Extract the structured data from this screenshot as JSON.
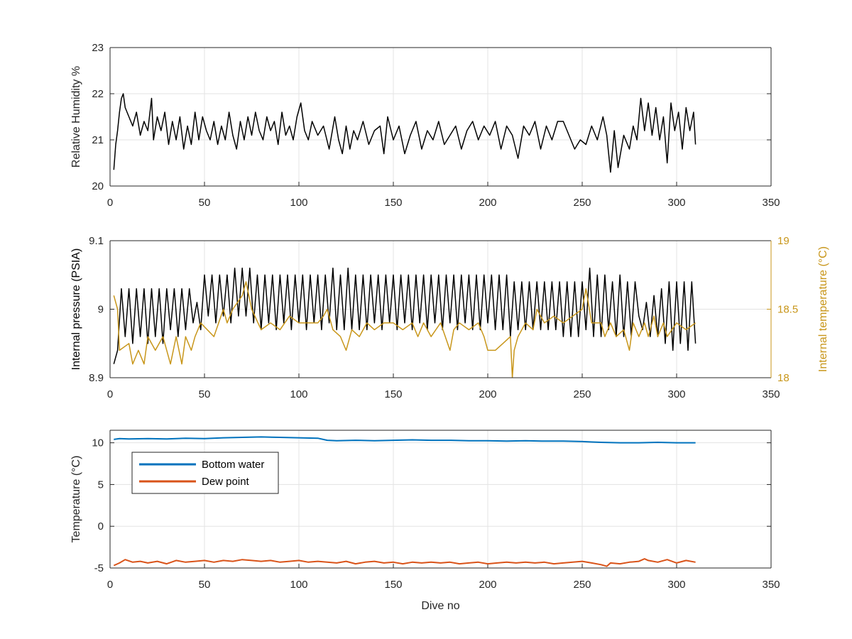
{
  "chart_data": [
    {
      "type": "line",
      "id": "humidity",
      "ylabel": "Relative Humidity %",
      "xlabel": "",
      "xlim": [
        0,
        350
      ],
      "ylim": [
        20,
        23
      ],
      "xticks": [
        "0",
        "50",
        "100",
        "150",
        "200",
        "250",
        "300",
        "350"
      ],
      "yticks": [
        "20",
        "21",
        "22",
        "23"
      ],
      "grid": true,
      "series": [
        {
          "color": "#000000",
          "x": [
            2,
            3,
            4,
            5,
            6,
            7,
            8,
            10,
            12,
            14,
            16,
            18,
            20,
            22,
            23,
            25,
            27,
            29,
            31,
            33,
            35,
            37,
            39,
            41,
            43,
            45,
            47,
            49,
            51,
            53,
            55,
            57,
            59,
            61,
            63,
            65,
            67,
            69,
            71,
            73,
            75,
            77,
            79,
            81,
            83,
            85,
            87,
            89,
            91,
            93,
            95,
            97,
            99,
            101,
            103,
            105,
            107,
            110,
            113,
            116,
            119,
            121,
            123,
            125,
            127,
            129,
            131,
            134,
            137,
            140,
            143,
            145,
            147,
            150,
            153,
            156,
            159,
            162,
            165,
            168,
            171,
            174,
            177,
            180,
            183,
            186,
            189,
            192,
            195,
            198,
            201,
            204,
            207,
            210,
            213,
            216,
            219,
            222,
            225,
            228,
            231,
            234,
            237,
            240,
            243,
            246,
            249,
            252,
            255,
            258,
            261,
            263,
            265,
            267,
            269,
            272,
            275,
            277,
            279,
            281,
            283,
            285,
            287,
            289,
            291,
            293,
            295,
            297,
            299,
            301,
            303,
            305,
            307,
            309,
            310
          ],
          "y": [
            20.35,
            20.9,
            21.2,
            21.6,
            21.9,
            22.0,
            21.7,
            21.5,
            21.3,
            21.6,
            21.1,
            21.4,
            21.2,
            21.9,
            21.0,
            21.5,
            21.2,
            21.6,
            20.9,
            21.4,
            21.0,
            21.5,
            20.8,
            21.3,
            20.9,
            21.6,
            21.0,
            21.5,
            21.2,
            21.0,
            21.4,
            20.9,
            21.3,
            21.0,
            21.6,
            21.1,
            20.8,
            21.4,
            21.0,
            21.5,
            21.1,
            21.6,
            21.2,
            21.0,
            21.5,
            21.2,
            21.4,
            20.9,
            21.6,
            21.1,
            21.3,
            21.0,
            21.5,
            21.8,
            21.2,
            21.0,
            21.4,
            21.1,
            21.3,
            20.8,
            21.5,
            21.0,
            20.7,
            21.3,
            20.8,
            21.2,
            21.0,
            21.4,
            20.9,
            21.2,
            21.3,
            20.7,
            21.5,
            21.0,
            21.3,
            20.7,
            21.1,
            21.4,
            20.8,
            21.2,
            21.0,
            21.4,
            20.9,
            21.1,
            21.3,
            20.8,
            21.2,
            21.4,
            21.0,
            21.3,
            21.1,
            21.4,
            20.8,
            21.3,
            21.1,
            20.6,
            21.3,
            21.1,
            21.4,
            20.8,
            21.3,
            21.0,
            21.4,
            21.4,
            21.1,
            20.8,
            21.0,
            20.9,
            21.3,
            21.0,
            21.5,
            21.1,
            20.3,
            21.2,
            20.4,
            21.1,
            20.8,
            21.3,
            21.0,
            21.9,
            21.2,
            21.8,
            21.1,
            21.7,
            21.0,
            21.5,
            20.5,
            21.8,
            21.2,
            21.6,
            20.8,
            21.7,
            21.2,
            21.6,
            20.9
          ]
        }
      ]
    },
    {
      "type": "line",
      "id": "pressure",
      "ylabel": "Internal pressure (PSIA)",
      "y2label": "Internal temperature (°C)",
      "xlabel": "",
      "xlim": [
        0,
        350
      ],
      "ylim": [
        8.9,
        9.1
      ],
      "y2lim": [
        18,
        19
      ],
      "xticks": [
        "0",
        "50",
        "100",
        "150",
        "200",
        "250",
        "300",
        "350"
      ],
      "yticks": [
        "8.9",
        "9",
        "9.1"
      ],
      "y2ticks": [
        "18",
        "18.5",
        "19"
      ],
      "grid": true,
      "series": [
        {
          "axis": "left",
          "color": "#000000",
          "x": [
            2,
            4,
            6,
            8,
            10,
            12,
            14,
            16,
            18,
            20,
            22,
            24,
            26,
            28,
            30,
            32,
            34,
            36,
            38,
            40,
            42,
            44,
            46,
            48,
            50,
            52,
            54,
            56,
            58,
            60,
            62,
            64,
            66,
            68,
            70,
            72,
            74,
            76,
            78,
            80,
            82,
            84,
            86,
            88,
            90,
            92,
            94,
            96,
            98,
            100,
            102,
            104,
            106,
            108,
            110,
            112,
            114,
            116,
            118,
            120,
            122,
            124,
            126,
            128,
            130,
            132,
            134,
            136,
            138,
            140,
            142,
            144,
            146,
            148,
            150,
            152,
            154,
            156,
            158,
            160,
            162,
            164,
            166,
            168,
            170,
            172,
            174,
            176,
            178,
            180,
            182,
            184,
            186,
            188,
            190,
            192,
            194,
            196,
            198,
            200,
            202,
            204,
            206,
            208,
            210,
            212,
            214,
            216,
            218,
            220,
            222,
            224,
            226,
            228,
            230,
            232,
            234,
            236,
            238,
            240,
            242,
            244,
            246,
            248,
            250,
            252,
            254,
            256,
            258,
            260,
            262,
            264,
            266,
            268,
            270,
            272,
            274,
            276,
            278,
            280,
            282,
            284,
            286,
            288,
            290,
            292,
            294,
            296,
            298,
            300,
            302,
            304,
            306,
            308,
            310
          ],
          "y": [
            8.92,
            8.94,
            9.03,
            8.96,
            9.03,
            8.95,
            9.03,
            8.96,
            9.03,
            8.95,
            9.03,
            8.96,
            9.03,
            8.95,
            9.03,
            8.97,
            9.03,
            8.96,
            9.03,
            8.97,
            9.03,
            8.98,
            9.01,
            8.97,
            9.05,
            8.99,
            9.05,
            8.98,
            9.05,
            8.99,
            9.05,
            8.98,
            9.06,
            8.99,
            9.06,
            8.99,
            9.06,
            8.98,
            9.05,
            8.97,
            9.05,
            8.98,
            9.05,
            8.97,
            9.05,
            8.98,
            9.05,
            8.97,
            9.05,
            8.98,
            9.05,
            8.97,
            9.05,
            8.98,
            9.05,
            8.97,
            9.05,
            8.98,
            9.06,
            8.97,
            9.05,
            8.97,
            9.06,
            8.97,
            9.05,
            8.97,
            9.05,
            8.97,
            9.05,
            8.98,
            9.05,
            8.97,
            9.05,
            8.98,
            9.05,
            8.97,
            9.05,
            8.98,
            9.05,
            8.97,
            9.05,
            8.98,
            9.05,
            8.97,
            9.05,
            8.98,
            9.05,
            8.97,
            9.05,
            8.98,
            9.05,
            8.97,
            9.05,
            8.98,
            9.05,
            8.97,
            9.05,
            8.97,
            9.05,
            8.98,
            9.05,
            8.97,
            9.05,
            8.97,
            9.05,
            8.96,
            9.04,
            8.97,
            9.04,
            8.97,
            9.04,
            8.97,
            9.04,
            8.97,
            9.04,
            8.97,
            9.04,
            8.97,
            9.04,
            8.96,
            9.04,
            8.96,
            9.04,
            8.96,
            9.04,
            8.97,
            9.06,
            8.96,
            9.05,
            8.96,
            9.05,
            8.97,
            9.04,
            8.96,
            9.05,
            8.96,
            9.04,
            8.96,
            9.04,
            8.99,
            8.97,
            9.01,
            8.96,
            9.02,
            8.96,
            9.03,
            8.95,
            9.04,
            8.94,
            9.04,
            8.95,
            9.04,
            8.94,
            9.04,
            8.95
          ]
        },
        {
          "axis": "right",
          "color": "#c8961a",
          "x": [
            2,
            4,
            5,
            10,
            12,
            15,
            18,
            20,
            24,
            28,
            30,
            32,
            35,
            38,
            40,
            43,
            45,
            48,
            55,
            60,
            62,
            65,
            70,
            72,
            75,
            80,
            85,
            90,
            95,
            100,
            105,
            110,
            113,
            115,
            118,
            122,
            125,
            128,
            132,
            136,
            140,
            145,
            150,
            155,
            160,
            163,
            166,
            170,
            175,
            180,
            182,
            185,
            190,
            195,
            198,
            200,
            204,
            208,
            212,
            213,
            214,
            216,
            220,
            224,
            226,
            230,
            235,
            240,
            245,
            250,
            252,
            255,
            260,
            262,
            265,
            268,
            272,
            275,
            277,
            280,
            283,
            285,
            288,
            290,
            293,
            295,
            300,
            305,
            310
          ],
          "y": [
            18.6,
            18.5,
            18.2,
            18.25,
            18.1,
            18.2,
            18.1,
            18.3,
            18.2,
            18.3,
            18.2,
            18.1,
            18.3,
            18.1,
            18.3,
            18.2,
            18.3,
            18.4,
            18.3,
            18.5,
            18.4,
            18.5,
            18.6,
            18.7,
            18.5,
            18.35,
            18.4,
            18.35,
            18.45,
            18.4,
            18.4,
            18.4,
            18.45,
            18.5,
            18.35,
            18.3,
            18.2,
            18.35,
            18.3,
            18.4,
            18.35,
            18.4,
            18.4,
            18.35,
            18.4,
            18.3,
            18.4,
            18.3,
            18.4,
            18.2,
            18.35,
            18.4,
            18.35,
            18.4,
            18.3,
            18.2,
            18.2,
            18.25,
            18.3,
            18.0,
            18.2,
            18.3,
            18.4,
            18.35,
            18.5,
            18.4,
            18.45,
            18.4,
            18.45,
            18.5,
            18.65,
            18.4,
            18.4,
            18.3,
            18.4,
            18.3,
            18.35,
            18.2,
            18.4,
            18.3,
            18.4,
            18.3,
            18.45,
            18.3,
            18.4,
            18.3,
            18.4,
            18.35,
            18.4
          ]
        }
      ]
    },
    {
      "type": "line",
      "id": "temperature",
      "ylabel": "Temperature (°C)",
      "xlabel": "Dive no",
      "xlim": [
        0,
        350
      ],
      "ylim": [
        -5,
        11.5
      ],
      "xticks": [
        "0",
        "50",
        "100",
        "150",
        "200",
        "250",
        "300",
        "350"
      ],
      "yticks": [
        "-5",
        "0",
        "5",
        "10"
      ],
      "grid": true,
      "legend": "top-left",
      "series": [
        {
          "name": "Bottom water",
          "color": "#0072bd",
          "x": [
            2,
            5,
            10,
            20,
            30,
            40,
            50,
            60,
            70,
            80,
            90,
            100,
            110,
            115,
            120,
            130,
            140,
            150,
            160,
            170,
            180,
            190,
            200,
            210,
            220,
            230,
            240,
            250,
            255,
            260,
            270,
            280,
            290,
            300,
            310
          ],
          "y": [
            10.4,
            10.5,
            10.45,
            10.5,
            10.45,
            10.55,
            10.5,
            10.6,
            10.65,
            10.7,
            10.65,
            10.6,
            10.55,
            10.3,
            10.25,
            10.3,
            10.25,
            10.3,
            10.35,
            10.3,
            10.3,
            10.25,
            10.25,
            10.2,
            10.25,
            10.2,
            10.2,
            10.15,
            10.1,
            10.05,
            10.0,
            10.0,
            10.05,
            10.0,
            10.0
          ]
        },
        {
          "name": "Dew point",
          "color": "#d95319",
          "x": [
            2,
            5,
            8,
            12,
            16,
            20,
            25,
            30,
            35,
            40,
            45,
            50,
            55,
            60,
            65,
            70,
            75,
            80,
            85,
            90,
            95,
            100,
            105,
            110,
            115,
            120,
            125,
            130,
            135,
            140,
            145,
            150,
            155,
            160,
            165,
            170,
            175,
            180,
            185,
            190,
            195,
            200,
            205,
            210,
            215,
            220,
            225,
            230,
            235,
            240,
            245,
            250,
            255,
            260,
            263,
            265,
            270,
            275,
            280,
            283,
            285,
            290,
            295,
            300,
            305,
            310
          ],
          "y": [
            -4.7,
            -4.4,
            -4.0,
            -4.3,
            -4.2,
            -4.4,
            -4.2,
            -4.5,
            -4.1,
            -4.3,
            -4.2,
            -4.1,
            -4.3,
            -4.1,
            -4.2,
            -4.0,
            -4.1,
            -4.2,
            -4.1,
            -4.3,
            -4.2,
            -4.1,
            -4.3,
            -4.2,
            -4.3,
            -4.4,
            -4.2,
            -4.5,
            -4.3,
            -4.2,
            -4.4,
            -4.3,
            -4.5,
            -4.3,
            -4.4,
            -4.3,
            -4.4,
            -4.3,
            -4.5,
            -4.4,
            -4.3,
            -4.5,
            -4.4,
            -4.3,
            -4.4,
            -4.3,
            -4.4,
            -4.3,
            -4.5,
            -4.4,
            -4.3,
            -4.2,
            -4.4,
            -4.6,
            -4.8,
            -4.4,
            -4.5,
            -4.3,
            -4.2,
            -3.9,
            -4.1,
            -4.3,
            -4.0,
            -4.4,
            -4.1,
            -4.3
          ]
        }
      ]
    }
  ]
}
